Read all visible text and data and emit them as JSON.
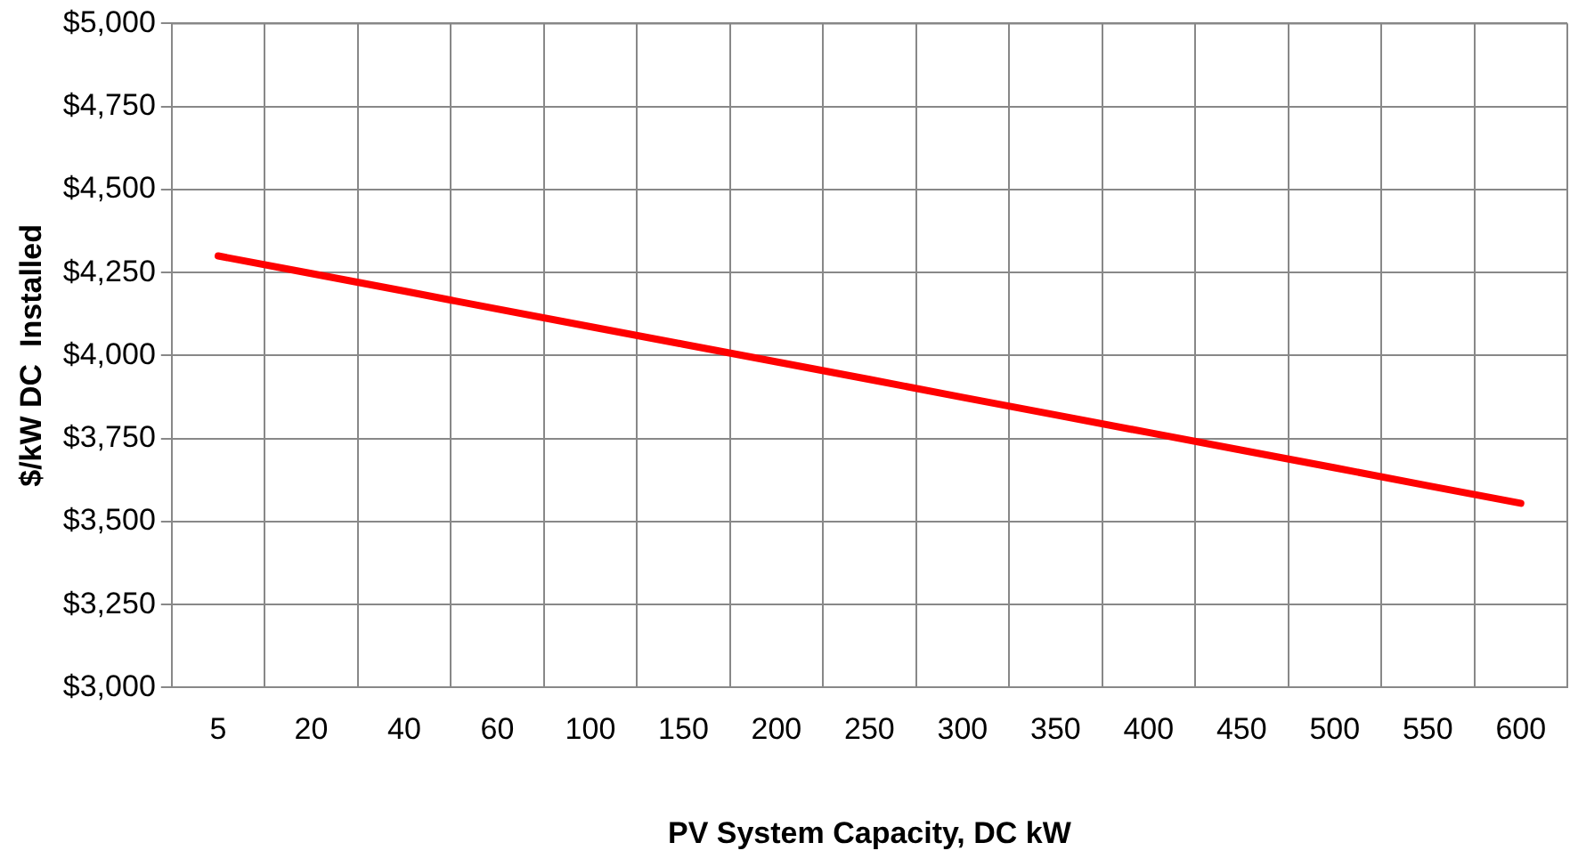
{
  "chart_data": {
    "type": "line",
    "xlabel": "PV System Capacity, DC kW",
    "ylabel": "$/kW DC  Installed",
    "categories": [
      "5",
      "20",
      "40",
      "60",
      "100",
      "150",
      "200",
      "250",
      "300",
      "350",
      "400",
      "450",
      "500",
      "550",
      "600"
    ],
    "series": [
      {
        "color": "#ff0000",
        "values": [
          4300,
          4247,
          4194,
          4140,
          4087,
          4034,
          3981,
          3928,
          3874,
          3821,
          3768,
          3715,
          3662,
          3608,
          3555
        ]
      }
    ],
    "ylim": [
      3000,
      5000
    ],
    "yticks": [
      {
        "value": 3000,
        "label": "$3,000"
      },
      {
        "value": 3250,
        "label": "$3,250"
      },
      {
        "value": 3500,
        "label": "$3,500"
      },
      {
        "value": 3750,
        "label": "$3,750"
      },
      {
        "value": 4000,
        "label": "$4,000"
      },
      {
        "value": 4250,
        "label": "$4,250"
      },
      {
        "value": 4500,
        "label": "$4,500"
      },
      {
        "value": 4750,
        "label": "$4,750"
      },
      {
        "value": 5000,
        "label": "$5,000"
      }
    ],
    "grid": true,
    "legend": false,
    "marker": "none",
    "line_style": "solid"
  }
}
